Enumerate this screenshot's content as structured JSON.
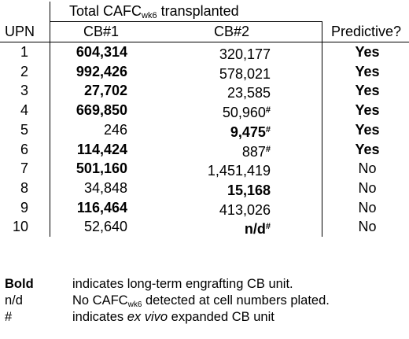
{
  "header": {
    "group_prefix": "Total CAFC",
    "group_sub": "wk6",
    "group_suffix": " transplanted",
    "col_upn": "UPN",
    "col_cb1": "CB#1",
    "col_cb2": "CB#2",
    "col_predictive": "Predictive?"
  },
  "rows": [
    {
      "upn": "1",
      "cb1": "604,314",
      "cb1_bold": true,
      "cb2": "320,177",
      "cb2_bold": false,
      "cb2_hash": "",
      "predictive": "Yes",
      "pred_bold": true
    },
    {
      "upn": "2",
      "cb1": "992,426",
      "cb1_bold": true,
      "cb2": "578,021",
      "cb2_bold": false,
      "cb2_hash": "",
      "predictive": "Yes",
      "pred_bold": true
    },
    {
      "upn": "3",
      "cb1": "27,702",
      "cb1_bold": true,
      "cb2": "23,585",
      "cb2_bold": false,
      "cb2_hash": "",
      "predictive": "Yes",
      "pred_bold": true
    },
    {
      "upn": "4",
      "cb1": "669,850",
      "cb1_bold": true,
      "cb2": "50,960",
      "cb2_bold": false,
      "cb2_hash": "#",
      "predictive": "Yes",
      "pred_bold": true
    },
    {
      "upn": "5",
      "cb1": "246",
      "cb1_bold": false,
      "cb2": "9,475",
      "cb2_bold": true,
      "cb2_hash": "#",
      "predictive": "Yes",
      "pred_bold": true
    },
    {
      "upn": "6",
      "cb1": "114,424",
      "cb1_bold": true,
      "cb2": "887",
      "cb2_bold": false,
      "cb2_hash": "#",
      "predictive": "Yes",
      "pred_bold": true
    },
    {
      "upn": "7",
      "cb1": "501,160",
      "cb1_bold": true,
      "cb2": "1,451,419",
      "cb2_bold": false,
      "cb2_hash": "",
      "predictive": "No",
      "pred_bold": false
    },
    {
      "upn": "8",
      "cb1": "34,848",
      "cb1_bold": false,
      "cb2": "15,168",
      "cb2_bold": true,
      "cb2_hash": "",
      "predictive": "No",
      "pred_bold": false
    },
    {
      "upn": "9",
      "cb1": "116,464",
      "cb1_bold": true,
      "cb2": "413,026",
      "cb2_bold": false,
      "cb2_hash": "",
      "predictive": "No",
      "pred_bold": false
    },
    {
      "upn": "10",
      "cb1": "52,640",
      "cb1_bold": false,
      "cb2": "n/d",
      "cb2_bold": true,
      "cb2_hash": "#",
      "predictive": "No",
      "pred_bold": false
    }
  ],
  "legend": {
    "bold_key": "Bold",
    "bold_text": "indicates long-term engrafting CB unit.",
    "nd_key": "n/d",
    "nd_text_prefix": "No CAFC",
    "nd_text_sub": "wk6",
    "nd_text_suffix": " detected at cell numbers plated.",
    "hash_key": "#",
    "hash_text_prefix": "indicates ",
    "hash_text_italic": "ex vivo",
    "hash_text_suffix": " expanded CB unit"
  }
}
